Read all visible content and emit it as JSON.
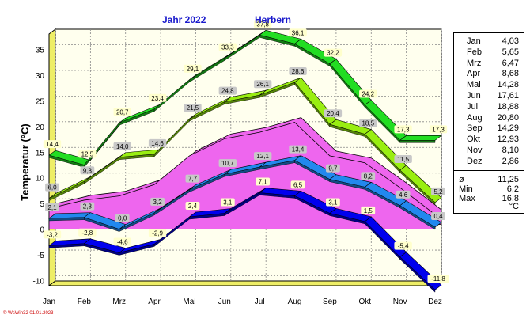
{
  "chart_data": {
    "type": "line",
    "title_year": "Jahr  2022",
    "title_location": "Herbern",
    "ylabel": "Temperatur  (°C)",
    "ylim": [
      -11,
      38
    ],
    "yticks": [
      -10,
      -5,
      0,
      5,
      10,
      15,
      20,
      25,
      30,
      35
    ],
    "categories": [
      "Jan",
      "Feb",
      "Mrz",
      "Apr",
      "Mai",
      "Jun",
      "Jul",
      "Aug",
      "Sep",
      "Okt",
      "Nov",
      "Dez"
    ],
    "grid": true,
    "series": [
      {
        "values": [
          14.4,
          12.5,
          20.7,
          23.4,
          29.1,
          33.3,
          37.8,
          36.1,
          32.2,
          24.2,
          17.3,
          17.3
        ],
        "labels": [
          "14,4",
          "12,5",
          "20,7",
          "23,4",
          "29,1",
          "33,3",
          "37,8",
          "36,1",
          "32,2",
          "24,2",
          "17,3",
          "17,3"
        ],
        "color": "#22dd22"
      },
      {
        "values": [
          6.0,
          9.3,
          14.0,
          14.6,
          21.5,
          24.8,
          26.1,
          28.6,
          20.4,
          18.5,
          11.5,
          5.2
        ],
        "labels": [
          "6,0",
          "9,3",
          "14,0",
          "14,6",
          "21,5",
          "24,8",
          "26,1",
          "28,6",
          "20,4",
          "18,5",
          "11,5",
          "5,2"
        ],
        "color": "#99ee11"
      },
      {
        "values": [
          2.1,
          2.3,
          0.0,
          3.2,
          7.7,
          10.7,
          12.1,
          13.4,
          9.7,
          8.2,
          4.6,
          0.4
        ],
        "labels": [
          "2,1",
          "2,3",
          "0,0",
          "3,2",
          "7,7",
          "10,7",
          "12,1",
          "13,4",
          "9,7",
          "8,2",
          "4,6",
          "0,4"
        ],
        "color": "#2288ee"
      },
      {
        "values": [
          -3.2,
          -2.8,
          -4.6,
          -2.9,
          2.4,
          3.1,
          7.1,
          6.5,
          3.1,
          1.5,
          -5.4,
          -11.8
        ],
        "labels": [
          "-3,2",
          "-2,8",
          "-4,6",
          "-2,9",
          "2,4",
          "3,1",
          "7,1",
          "6,5",
          "3,1",
          "1,5",
          "-5,4",
          "-11,8"
        ],
        "color": "#0000ee"
      }
    ],
    "mean_values": [
      4.03,
      5.65,
      6.47,
      8.68,
      14.28,
      17.61,
      18.88,
      20.8,
      14.29,
      12.93,
      8.1,
      2.86
    ],
    "mean_color": "#ee66ee"
  },
  "legend": {
    "months": [
      {
        "m": "Jan",
        "v": "4,03"
      },
      {
        "m": "Feb",
        "v": "5,65"
      },
      {
        "m": "Mrz",
        "v": "6,47"
      },
      {
        "m": "Apr",
        "v": "8,68"
      },
      {
        "m": "Mai",
        "v": "14,28"
      },
      {
        "m": "Jun",
        "v": "17,61"
      },
      {
        "m": "Jul",
        "v": "18,88"
      },
      {
        "m": "Aug",
        "v": "20,80"
      },
      {
        "m": "Sep",
        "v": "14,29"
      },
      {
        "m": "Okt",
        "v": "12,93"
      },
      {
        "m": "Nov",
        "v": "8,10"
      },
      {
        "m": "Dez",
        "v": "2,86"
      }
    ],
    "stats": [
      {
        "m": "ø",
        "v": "11,25"
      },
      {
        "m": "Min",
        "v": "6,2"
      },
      {
        "m": "Max",
        "v": "16,8"
      }
    ],
    "unit": "°C"
  },
  "copyright": "© WsWin32  01.01.2023"
}
